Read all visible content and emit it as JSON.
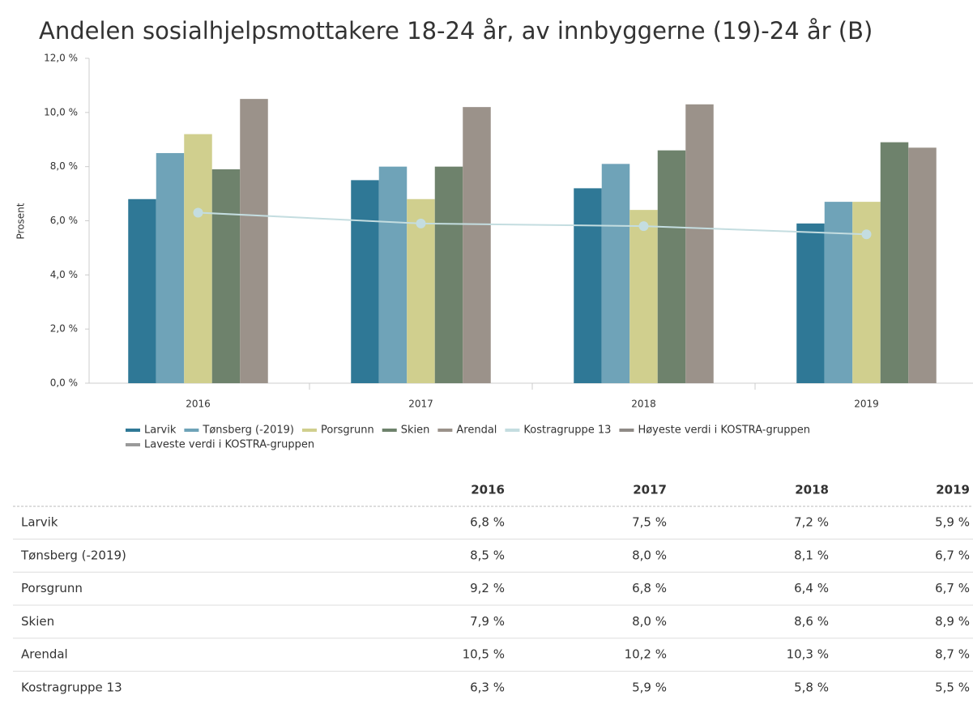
{
  "chart_data": {
    "type": "bar",
    "title": "Andelen sosialhjelpsmottakere 18-24 år, av innbyggerne (19)-24 år (B)",
    "ylabel": "Prosent",
    "categories": [
      "2016",
      "2017",
      "2018",
      "2019"
    ],
    "ylim": [
      0,
      12
    ],
    "yticks": [
      {
        "value": 0,
        "label": "0,0 %"
      },
      {
        "value": 2,
        "label": "2,0 %"
      },
      {
        "value": 4,
        "label": "4,0 %"
      },
      {
        "value": 6,
        "label": "6,0 %"
      },
      {
        "value": 8,
        "label": "8,0 %"
      },
      {
        "value": 10,
        "label": "10,0 %"
      },
      {
        "value": 12,
        "label": "12,0 %"
      }
    ],
    "grid": false,
    "series": [
      {
        "name": "Larvik",
        "color": "#2f7896",
        "values": [
          6.8,
          7.5,
          7.2,
          5.9
        ]
      },
      {
        "name": "Tønsberg (-2019)",
        "color": "#6fa3b8",
        "values": [
          8.5,
          8.0,
          8.1,
          6.7
        ]
      },
      {
        "name": "Porsgrunn",
        "color": "#d0cf8e",
        "values": [
          9.2,
          6.8,
          6.4,
          6.7
        ]
      },
      {
        "name": "Skien",
        "color": "#6e826c",
        "values": [
          7.9,
          8.0,
          8.6,
          8.9
        ]
      },
      {
        "name": "Arendal",
        "color": "#9b928a",
        "values": [
          10.5,
          10.2,
          10.3,
          8.7
        ]
      },
      {
        "name": "Kostragruppe 13",
        "color": "#c4dde0",
        "type": "line",
        "values": [
          6.3,
          5.9,
          5.8,
          5.5
        ]
      },
      {
        "name": "Høyeste verdi i KOSTRA-gruppen",
        "color": "#8f8a86",
        "type": "line",
        "values": [
          null,
          null,
          null,
          null
        ]
      },
      {
        "name": "Laveste verdi i KOSTRA-gruppen",
        "color": "#9a9a9a",
        "type": "line",
        "values": [
          null,
          null,
          null,
          null
        ]
      }
    ]
  },
  "table": {
    "columns": [
      "2016",
      "2017",
      "2018",
      "2019"
    ],
    "rows": [
      [
        "Larvik",
        "6,8 %",
        "7,5 %",
        "7,2 %",
        "5,9 %"
      ],
      [
        "Tønsberg (-2019)",
        "8,5 %",
        "8,0 %",
        "8,1 %",
        "6,7 %"
      ],
      [
        "Porsgrunn",
        "9,2 %",
        "6,8 %",
        "6,4 %",
        "6,7 %"
      ],
      [
        "Skien",
        "7,9 %",
        "8,0 %",
        "8,6 %",
        "8,9 %"
      ],
      [
        "Arendal",
        "10,5 %",
        "10,2 %",
        "10,3 %",
        "8,7 %"
      ],
      [
        "Kostragruppe 13",
        "6,3 %",
        "5,9 %",
        "5,8 %",
        "5,5 %"
      ]
    ]
  }
}
